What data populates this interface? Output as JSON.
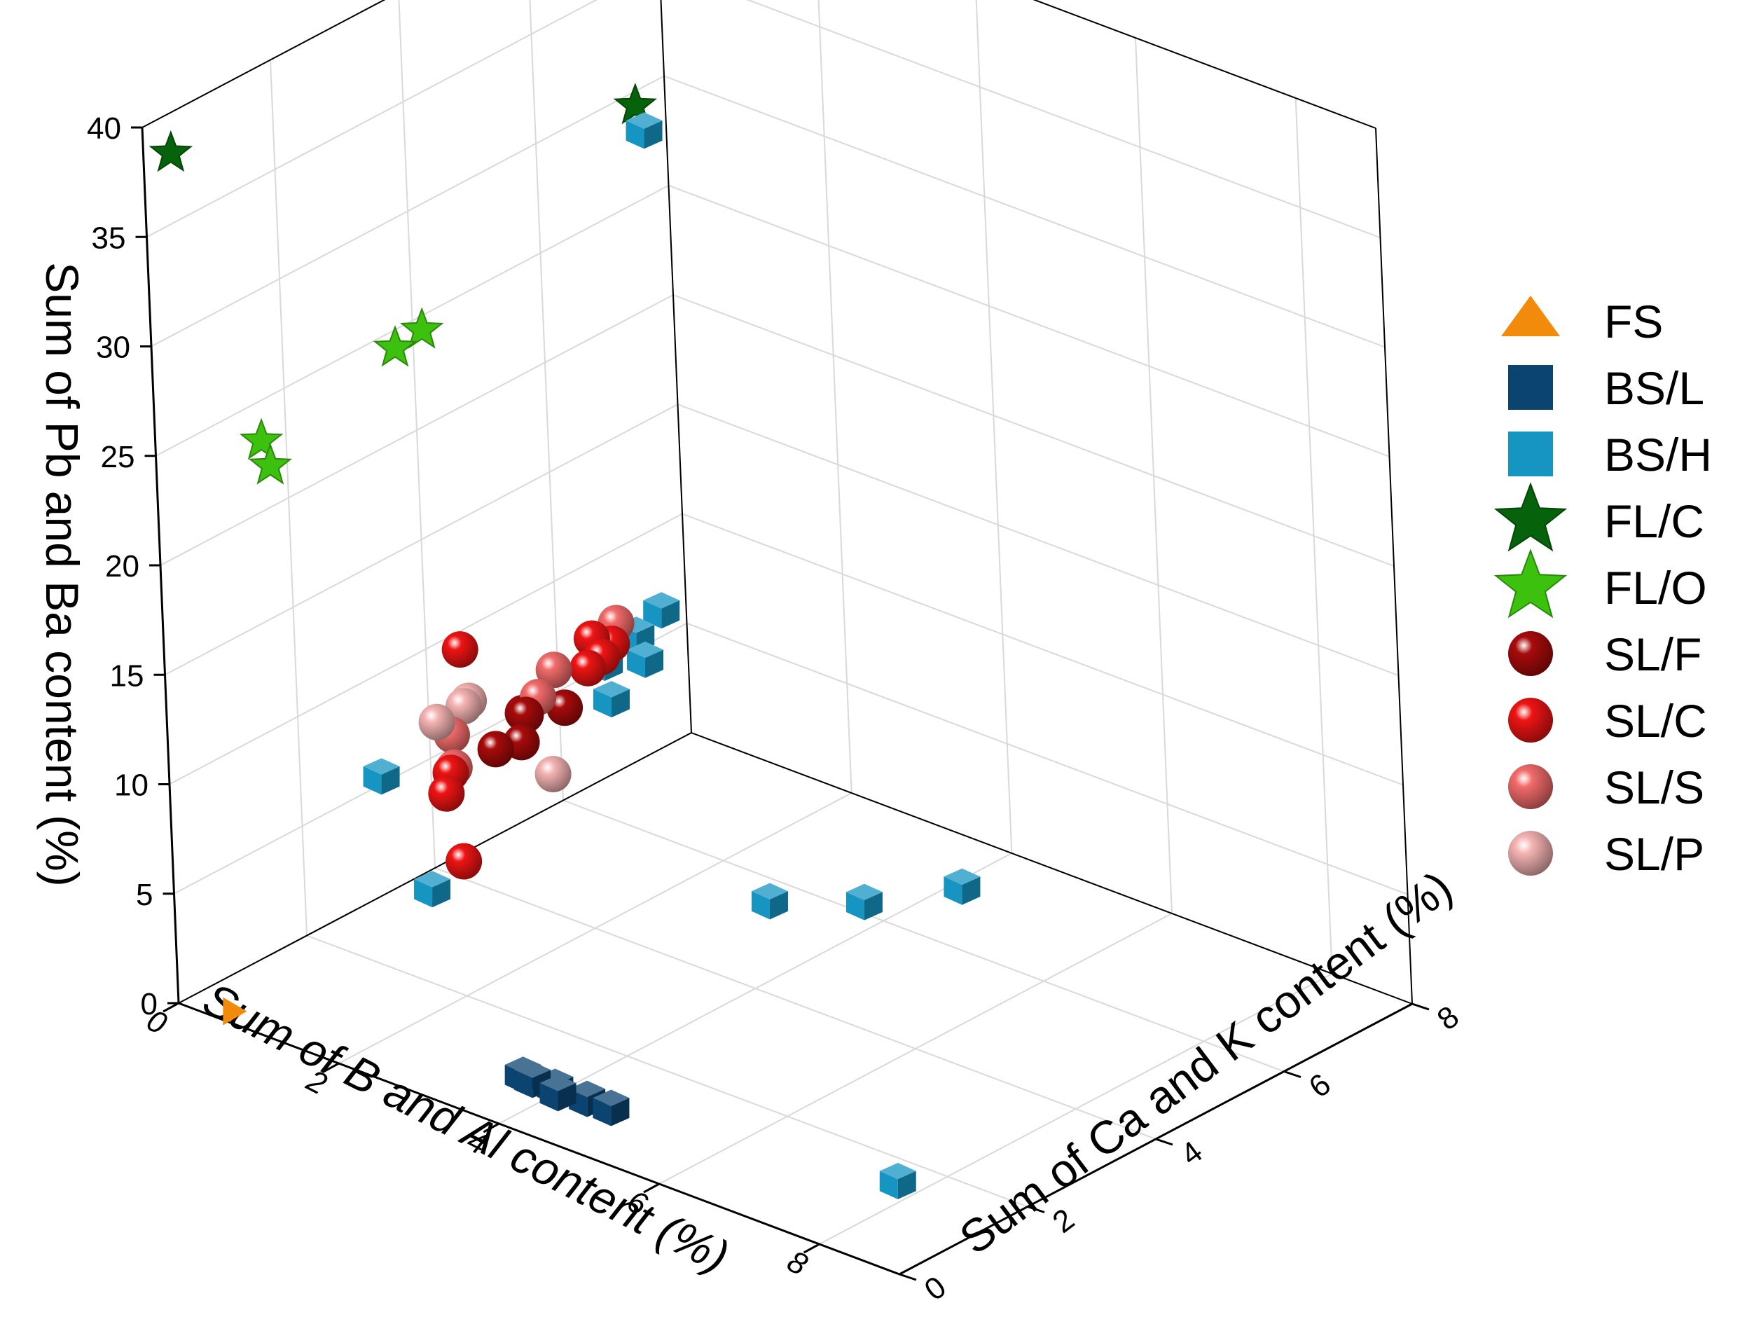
{
  "chart_data": {
    "type": "scatter",
    "dimensions": 3,
    "title": "",
    "xlabel": "Sum of B and Al content (%)",
    "ylabel": "Sum of Ca and K content (%)",
    "zlabel": "Sum of Pb and Ba content (%)",
    "xlim": [
      0,
      9
    ],
    "ylim": [
      0,
      8
    ],
    "zlim": [
      0,
      40
    ],
    "x_ticks": [
      "0",
      "2",
      "4",
      "6",
      "8"
    ],
    "y_ticks": [
      "0",
      "2",
      "4",
      "6",
      "8"
    ],
    "z_ticks": [
      "0",
      "5",
      "10",
      "15",
      "20",
      "25",
      "30",
      "35",
      "40"
    ],
    "grid": true,
    "legend_position": "right",
    "series": [
      {
        "name": "FS",
        "marker": "triangle",
        "color": "#f28a0c",
        "points": [
          [
            0.6,
            0.1,
            0.3
          ]
        ]
      },
      {
        "name": "BS/L",
        "marker": "cube",
        "color": "#0b4470",
        "points": [
          [
            3.5,
            1.0,
            0
          ],
          [
            3.9,
            1.0,
            0
          ],
          [
            4.3,
            1.0,
            0
          ],
          [
            4.6,
            1.0,
            0
          ],
          [
            3.7,
            0.9,
            0.2
          ],
          [
            4.1,
            0.8,
            0.3
          ]
        ]
      },
      {
        "name": "BS/H",
        "marker": "cube",
        "color": "#1795c2",
        "points": [
          [
            0.2,
            3.0,
            6.0
          ],
          [
            1.2,
            2.5,
            3.0
          ],
          [
            0.3,
            7.3,
            29.0
          ],
          [
            0.1,
            7.5,
            6.5
          ],
          [
            0.1,
            7.1,
            6.0
          ],
          [
            0.2,
            7.1,
            5.0
          ],
          [
            0.5,
            6.2,
            5.0
          ],
          [
            0.1,
            6.6,
            5.5
          ],
          [
            3.6,
            6.2,
            0
          ],
          [
            4.1,
            7.1,
            0
          ],
          [
            2.9,
            5.6,
            0
          ],
          [
            7.7,
            1.6,
            0
          ]
        ]
      },
      {
        "name": "FL/C",
        "marker": "star",
        "color": "#07630b",
        "points": [
          [
            0.1,
            0.3,
            38.5
          ],
          [
            0.2,
            7.3,
            30.0
          ]
        ]
      },
      {
        "name": "FL/O",
        "marker": "star",
        "color": "#3cc20e",
        "points": [
          [
            0.1,
            1.5,
            23.5
          ],
          [
            0.2,
            1.5,
            22.5
          ],
          [
            0.1,
            3.6,
            24.5
          ],
          [
            0.2,
            3.9,
            25.0
          ]
        ]
      },
      {
        "name": "SL/F",
        "marker": "sphere",
        "color": "#a80b0b",
        "points": [
          [
            0.5,
            4.4,
            5.5
          ],
          [
            0.5,
            4.8,
            5.2
          ],
          [
            0.2,
            5.2,
            5.5
          ],
          [
            0.4,
            5.6,
            5.4
          ],
          [
            0.4,
            5.0,
            6.0
          ]
        ]
      },
      {
        "name": "SL/C",
        "marker": "sphere",
        "color": "#ee1414",
        "points": [
          [
            1.2,
            3.0,
            3.5
          ],
          [
            0.1,
            4.4,
            9.5
          ],
          [
            0.5,
            3.7,
            5.5
          ],
          [
            0.3,
            6.1,
            6.3
          ],
          [
            0.2,
            6.6,
            6.5
          ],
          [
            0.4,
            6.2,
            6.8
          ],
          [
            0.2,
            6.3,
            7.2
          ],
          [
            0.6,
            3.5,
            5.0
          ]
        ]
      },
      {
        "name": "SL/S",
        "marker": "sphere",
        "color": "#f26b6b",
        "points": [
          [
            0.3,
            4.0,
            5.0
          ],
          [
            0.2,
            4.1,
            6.2
          ],
          [
            0.4,
            5.2,
            6.5
          ],
          [
            0.2,
            5.7,
            6.7
          ],
          [
            0.1,
            6.8,
            7.0
          ]
        ]
      },
      {
        "name": "SL/P",
        "marker": "sphere",
        "color": "#f5b3b3",
        "points": [
          [
            0.8,
            4.9,
            4.0
          ],
          [
            0.1,
            4.0,
            6.8
          ],
          [
            0.1,
            4.5,
            7.0
          ],
          [
            0.2,
            4.3,
            7.2
          ]
        ]
      }
    ]
  }
}
